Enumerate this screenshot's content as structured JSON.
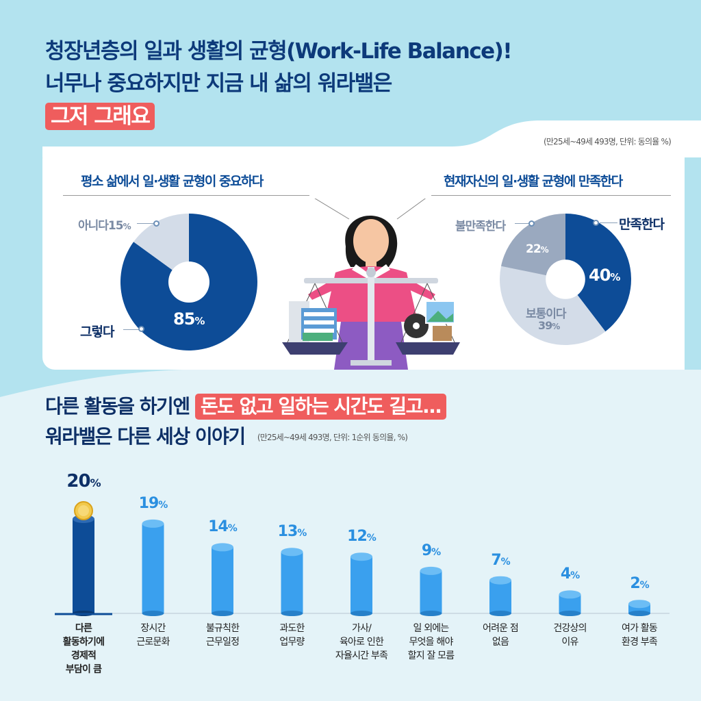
{
  "header": {
    "line1": "청장년층의 일과 생활의 균형(Work-Life Balance)!",
    "line2": "너무나 중요하지만 지금 내 삶의 워라밸은",
    "highlight": "그저 그래요",
    "note": "(만25세~49세 493명, 단위: 동의율 %)"
  },
  "colors": {
    "dark_navy": "#0d4c97",
    "light_gray_blue": "#d3dce8",
    "gray_blue": "#9aa9bf",
    "bar_blue": "#3aa0ee",
    "bar_navy": "#0d4c97",
    "accent_red": "#ef5d5d"
  },
  "section2": {
    "title_part1": "다른 활동을 하기엔",
    "title_highlight": "돈도 없고 일하는 시간도 길고...",
    "title_line2": "워라밸은 다른 세상 이야기",
    "note": "(만25세~49세 493명, 단위: 1순위 동의율, %)"
  },
  "chart_data": [
    {
      "type": "pie",
      "title": "평소 삶에서 일·생활 균형이 중요하다",
      "categories": [
        "그렇다",
        "아니다"
      ],
      "values": [
        85,
        15
      ],
      "value_labels": [
        "85",
        "15"
      ],
      "unit": "%"
    },
    {
      "type": "pie",
      "title": "현재자신의 일·생활 균형에 만족한다",
      "categories": [
        "만족한다",
        "보통이다",
        "불만족한다"
      ],
      "values": [
        40,
        39,
        22
      ],
      "value_labels": [
        "40",
        "39",
        "22"
      ],
      "unit": "%"
    },
    {
      "type": "bar",
      "categories": [
        "다른 활동하기에 경제적 부담이 큼",
        "장시간 근로문화",
        "불규칙한 근무일정",
        "과도한 업무량",
        "가사/ 육아로 인한 자율시간 부족",
        "일 외에는 무엇을 해야 할지 잘 모름",
        "어려운 점 없음",
        "건강상의 이유",
        "여가 활동 환경 부족"
      ],
      "category_lines": [
        [
          "다른",
          "활동하기에",
          "경제적",
          "부담이 큼"
        ],
        [
          "장시간",
          "근로문화"
        ],
        [
          "불규칙한",
          "근무일정"
        ],
        [
          "과도한",
          "업무량"
        ],
        [
          "가사/",
          "육아로 인한",
          "자율시간 부족"
        ],
        [
          "일 외에는",
          "무엇을 해야",
          "할지 잘 모름"
        ],
        [
          "어려운 점",
          "없음"
        ],
        [
          "건강상의",
          "이유"
        ],
        [
          "여가 활동",
          "환경 부족"
        ]
      ],
      "values": [
        20,
        19,
        14,
        13,
        12,
        9,
        7,
        4,
        2
      ],
      "unit": "%"
    }
  ]
}
